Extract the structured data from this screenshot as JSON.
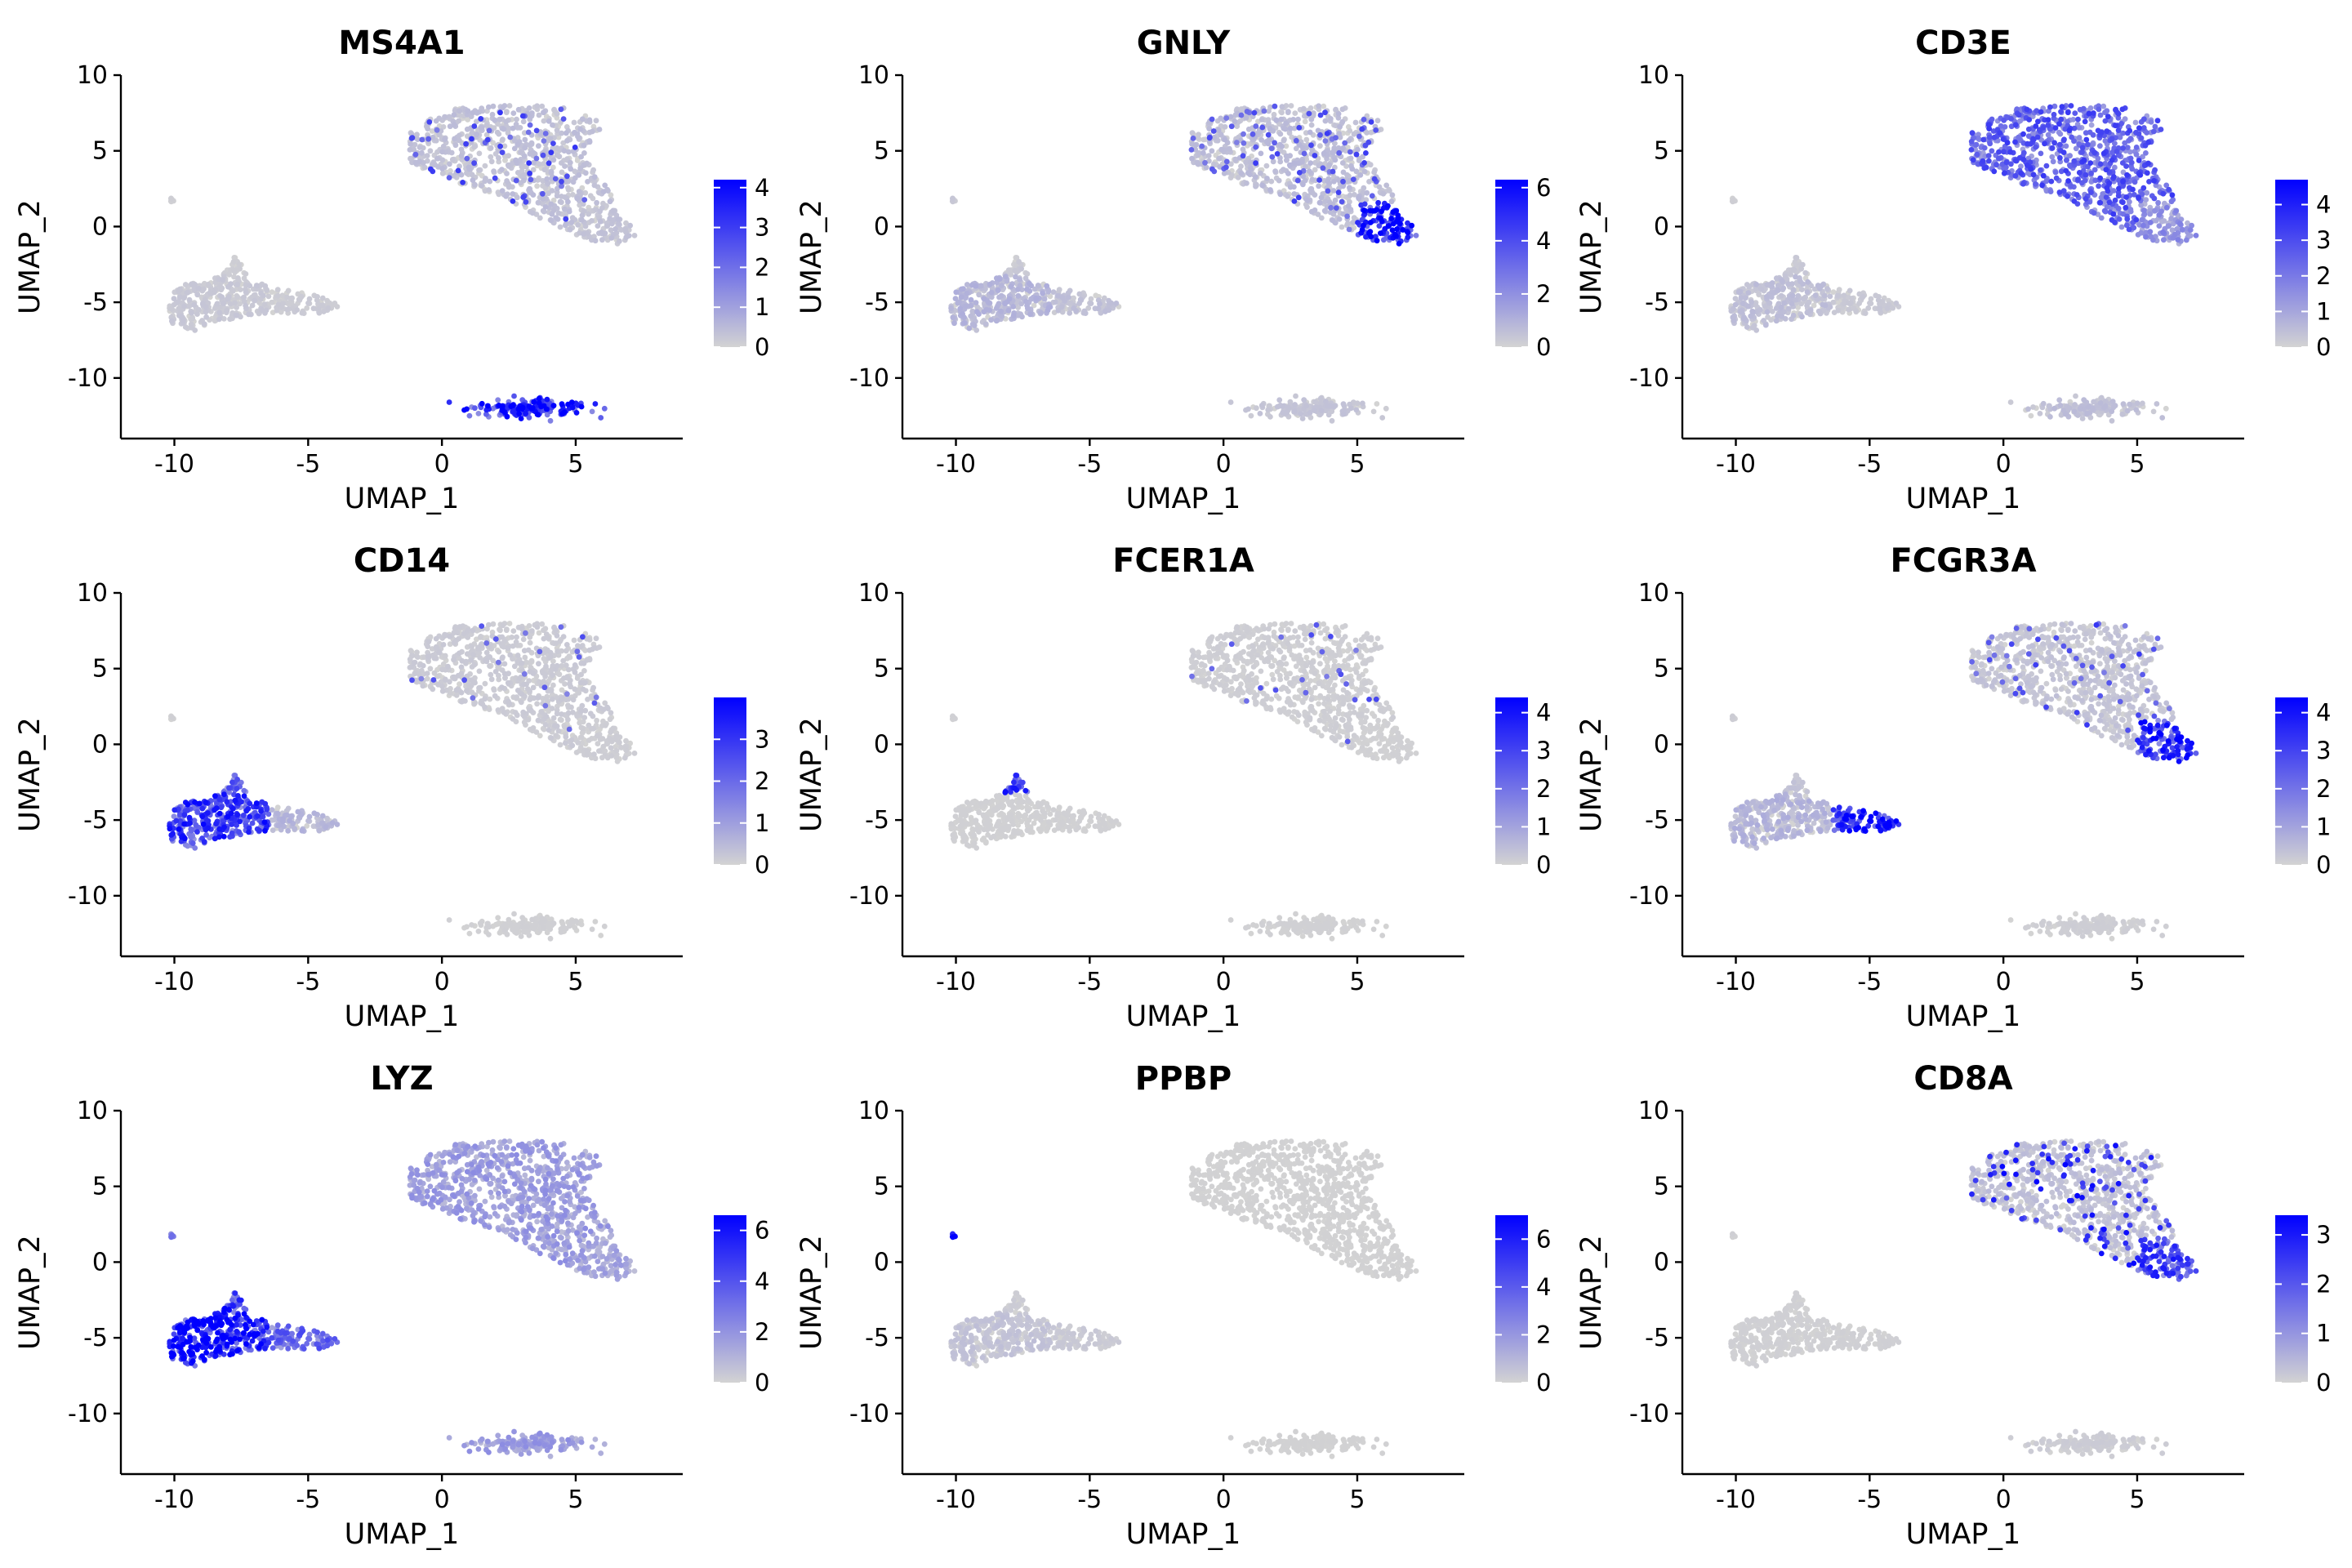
{
  "figure": {
    "layout": "3x3 feature plot grid",
    "point_color_low": "#d3d3d3",
    "point_color_high": "#0000ff"
  },
  "chart_data": [
    {
      "type": "scatter",
      "title": "MS4A1",
      "xlabel": "UMAP_1",
      "ylabel": "UMAP_2",
      "xlim": [
        -12,
        9
      ],
      "ylim": [
        -14,
        10
      ],
      "x_ticks": [
        "-10",
        "-5",
        "0",
        "5"
      ],
      "y_ticks": [
        "-10",
        "-5",
        "0",
        "5",
        "10"
      ],
      "colorbar": {
        "min": 0,
        "max": 4.2,
        "ticks": [
          "0",
          "1",
          "2",
          "3",
          "4"
        ]
      },
      "expression": {
        "tcells": 0.35,
        "nk_tip": 0.3,
        "cd14_mono": 0.2,
        "fcgr3a_mono": 0.15,
        "dc_tip": 0.1,
        "bcells": 3.4,
        "platelet": 0.1,
        "tcell_high_frac": 0.08,
        "tcell_high_value": 2.5
      }
    },
    {
      "type": "scatter",
      "title": "GNLY",
      "xlabel": "UMAP_1",
      "ylabel": "UMAP_2",
      "xlim": [
        -12,
        9
      ],
      "ylim": [
        -14,
        10
      ],
      "x_ticks": [
        "-10",
        "-5",
        "0",
        "5"
      ],
      "y_ticks": [
        "-10",
        "-5",
        "0",
        "5",
        "10"
      ],
      "colorbar": {
        "min": 0,
        "max": 6.3,
        "ticks": [
          "0",
          "2",
          "4",
          "6"
        ]
      },
      "expression": {
        "tcells": 0.6,
        "nk_tip": 5.5,
        "cd14_mono": 0.8,
        "fcgr3a_mono": 0.5,
        "dc_tip": 0.3,
        "bcells": 0.4,
        "platelet": 0.3,
        "tcell_high_frac": 0.1,
        "tcell_high_value": 3.5
      }
    },
    {
      "type": "scatter",
      "title": "CD3E",
      "xlabel": "UMAP_1",
      "ylabel": "UMAP_2",
      "xlim": [
        -12,
        9
      ],
      "ylim": [
        -14,
        10
      ],
      "x_ticks": [
        "-10",
        "-5",
        "0",
        "5"
      ],
      "y_ticks": [
        "-10",
        "-5",
        "0",
        "5",
        "10"
      ],
      "colorbar": {
        "min": 0,
        "max": 4.7,
        "ticks": [
          "0",
          "1",
          "2",
          "3",
          "4"
        ]
      },
      "expression": {
        "tcells": 2.5,
        "nk_tip": 1.4,
        "cd14_mono": 0.4,
        "fcgr3a_mono": 0.2,
        "dc_tip": 0.2,
        "bcells": 0.4,
        "platelet": 0.1,
        "tcell_high_frac": 0.0,
        "tcell_high_value": 0
      }
    },
    {
      "type": "scatter",
      "title": "CD14",
      "xlabel": "UMAP_1",
      "ylabel": "UMAP_2",
      "xlim": [
        -12,
        9
      ],
      "ylim": [
        -14,
        10
      ],
      "x_ticks": [
        "-10",
        "-5",
        "0",
        "5"
      ],
      "y_ticks": [
        "-10",
        "-5",
        "0",
        "5",
        "10"
      ],
      "colorbar": {
        "min": 0,
        "max": 4.0,
        "ticks": [
          "0",
          "1",
          "2",
          "3"
        ]
      },
      "expression": {
        "tcells": 0.15,
        "nk_tip": 0.1,
        "cd14_mono": 2.8,
        "fcgr3a_mono": 0.5,
        "dc_tip": 2.0,
        "bcells": 0.05,
        "platelet": 0.05,
        "tcell_high_frac": 0.03,
        "tcell_high_value": 2.0
      }
    },
    {
      "type": "scatter",
      "title": "FCER1A",
      "xlabel": "UMAP_1",
      "ylabel": "UMAP_2",
      "xlim": [
        -12,
        9
      ],
      "ylim": [
        -14,
        10
      ],
      "x_ticks": [
        "-10",
        "-5",
        "0",
        "5"
      ],
      "y_ticks": [
        "-10",
        "-5",
        "0",
        "5",
        "10"
      ],
      "colorbar": {
        "min": 0,
        "max": 4.4,
        "ticks": [
          "0",
          "1",
          "2",
          "3",
          "4"
        ]
      },
      "expression": {
        "tcells": 0.1,
        "nk_tip": 0.05,
        "cd14_mono": 0.05,
        "fcgr3a_mono": 0.05,
        "dc_tip": 3.2,
        "bcells": 0.05,
        "platelet": 0.05,
        "tcell_high_frac": 0.03,
        "tcell_high_value": 2.5
      }
    },
    {
      "type": "scatter",
      "title": "FCGR3A",
      "xlabel": "UMAP_1",
      "ylabel": "UMAP_2",
      "xlim": [
        -12,
        9
      ],
      "ylim": [
        -14,
        10
      ],
      "x_ticks": [
        "-10",
        "-5",
        "0",
        "5"
      ],
      "y_ticks": [
        "-10",
        "-5",
        "0",
        "5",
        "10"
      ],
      "colorbar": {
        "min": 0,
        "max": 4.4,
        "ticks": [
          "0",
          "1",
          "2",
          "3",
          "4"
        ]
      },
      "expression": {
        "tcells": 0.3,
        "nk_tip": 3.4,
        "cd14_mono": 0.6,
        "fcgr3a_mono": 3.6,
        "dc_tip": 0.3,
        "bcells": 0.1,
        "platelet": 0.1,
        "tcell_high_frac": 0.05,
        "tcell_high_value": 2.5
      }
    },
    {
      "type": "scatter",
      "title": "LYZ",
      "xlabel": "UMAP_1",
      "ylabel": "UMAP_2",
      "xlim": [
        -12,
        9
      ],
      "ylim": [
        -14,
        10
      ],
      "x_ticks": [
        "-10",
        "-5",
        "0",
        "5"
      ],
      "y_ticks": [
        "-10",
        "-5",
        "0",
        "5",
        "10"
      ],
      "colorbar": {
        "min": 0,
        "max": 6.6,
        "ticks": [
          "0",
          "2",
          "4",
          "6"
        ]
      },
      "expression": {
        "tcells": 1.6,
        "nk_tip": 1.4,
        "cd14_mono": 5.8,
        "fcgr3a_mono": 3.2,
        "dc_tip": 5.0,
        "bcells": 1.6,
        "platelet": 2.5,
        "tcell_high_frac": 0.0,
        "tcell_high_value": 0
      }
    },
    {
      "type": "scatter",
      "title": "PPBP",
      "xlabel": "UMAP_1",
      "ylabel": "UMAP_2",
      "xlim": [
        -12,
        9
      ],
      "ylim": [
        -14,
        10
      ],
      "x_ticks": [
        "-10",
        "-5",
        "0",
        "5"
      ],
      "y_ticks": [
        "-10",
        "-5",
        "0",
        "5",
        "10"
      ],
      "colorbar": {
        "min": 0,
        "max": 7.0,
        "ticks": [
          "0",
          "2",
          "4",
          "6"
        ]
      },
      "expression": {
        "tcells": 0.05,
        "nk_tip": 0.05,
        "cd14_mono": 0.5,
        "fcgr3a_mono": 0.3,
        "dc_tip": 0.2,
        "bcells": 0.05,
        "platelet": 6.5,
        "tcell_high_frac": 0.0,
        "tcell_high_value": 0
      }
    },
    {
      "type": "scatter",
      "title": "CD8A",
      "xlabel": "UMAP_1",
      "ylabel": "UMAP_2",
      "xlim": [
        -12,
        9
      ],
      "ylim": [
        -14,
        10
      ],
      "x_ticks": [
        "-10",
        "-5",
        "0",
        "5"
      ],
      "y_ticks": [
        "-10",
        "-5",
        "0",
        "5",
        "10"
      ],
      "colorbar": {
        "min": 0,
        "max": 3.4,
        "ticks": [
          "0",
          "1",
          "2",
          "3"
        ]
      },
      "expression": {
        "tcells": 0.3,
        "nk_tip": 2.2,
        "cd14_mono": 0.05,
        "fcgr3a_mono": 0.05,
        "dc_tip": 0.05,
        "bcells": 0.1,
        "platelet": 0.05,
        "tcell_high_frac": 0.12,
        "tcell_high_value": 2.6
      }
    }
  ]
}
